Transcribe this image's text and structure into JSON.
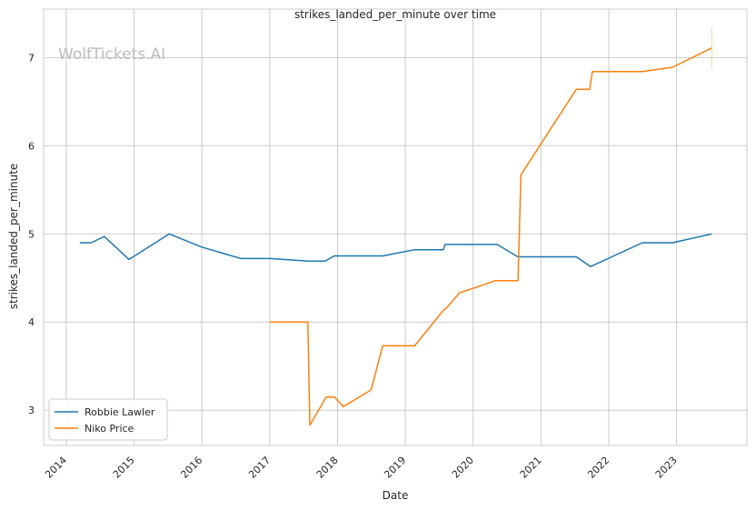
{
  "chart_data": {
    "type": "line",
    "title": "strikes_landed_per_minute over time",
    "xlabel": "Date",
    "ylabel": "strikes_landed_per_minute",
    "watermark": "WolfTickets.AI",
    "xlim": [
      "2013-09-01",
      "2024-01-15"
    ],
    "ylim": [
      2.6,
      7.55
    ],
    "x_ticks": [
      "2014",
      "2015",
      "2016",
      "2017",
      "2018",
      "2019",
      "2020",
      "2021",
      "2022",
      "2023"
    ],
    "y_ticks": [
      3,
      4,
      5,
      6,
      7
    ],
    "grid": true,
    "legend_position": "lower-left",
    "series": [
      {
        "name": "Robbie Lawler",
        "color": "#1f77b4",
        "points": [
          [
            "2014-03-15",
            4.9
          ],
          [
            "2014-05-15",
            4.9
          ],
          [
            "2014-07-25",
            4.97
          ],
          [
            "2014-12-05",
            4.71
          ],
          [
            "2015-07-10",
            5.0
          ],
          [
            "2016-01-01",
            4.85
          ],
          [
            "2016-07-30",
            4.72
          ],
          [
            "2017-01-01",
            4.72
          ],
          [
            "2017-07-30",
            4.69
          ],
          [
            "2017-10-25",
            4.69
          ],
          [
            "2017-12-15",
            4.75
          ],
          [
            "2018-03-01",
            4.75
          ],
          [
            "2018-09-01",
            4.75
          ],
          [
            "2019-02-20",
            4.82
          ],
          [
            "2019-07-25",
            4.82
          ],
          [
            "2019-08-03",
            4.88
          ],
          [
            "2020-05-10",
            4.88
          ],
          [
            "2020-08-29",
            4.74
          ],
          [
            "2021-07-10",
            4.74
          ],
          [
            "2021-09-25",
            4.63
          ],
          [
            "2022-07-01",
            4.9
          ],
          [
            "2022-12-10",
            4.9
          ],
          [
            "2023-07-10",
            5.0
          ]
        ]
      },
      {
        "name": "Niko Price",
        "color": "#ff7f0e",
        "points": [
          [
            "2017-01-01",
            4.0
          ],
          [
            "2017-07-25",
            4.0
          ],
          [
            "2017-08-05",
            2.83
          ],
          [
            "2017-11-01",
            3.15
          ],
          [
            "2017-12-15",
            3.15
          ],
          [
            "2018-02-01",
            3.04
          ],
          [
            "2018-07-01",
            3.23
          ],
          [
            "2018-09-01",
            3.73
          ],
          [
            "2019-02-20",
            3.73
          ],
          [
            "2019-07-20",
            4.12
          ],
          [
            "2019-08-15",
            4.17
          ],
          [
            "2019-10-20",
            4.33
          ],
          [
            "2020-05-01",
            4.47
          ],
          [
            "2020-08-30",
            4.47
          ],
          [
            "2020-09-15",
            5.67
          ],
          [
            "2021-07-10",
            6.64
          ],
          [
            "2021-09-20",
            6.64
          ],
          [
            "2021-10-05",
            6.84
          ],
          [
            "2022-07-01",
            6.84
          ],
          [
            "2022-12-10",
            6.89
          ],
          [
            "2023-07-10",
            7.11
          ]
        ]
      }
    ],
    "error_bar": {
      "series": "Niko Price",
      "x": "2023-07-10",
      "low": 6.87,
      "high": 7.35
    }
  }
}
